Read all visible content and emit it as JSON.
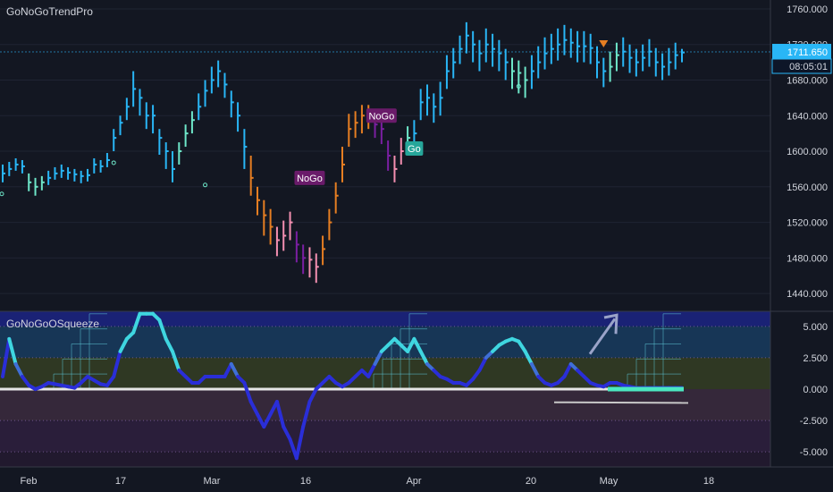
{
  "indicators": {
    "price_title": "GoNoGoTrendPro",
    "osc_title": "GoNoGoOSqueeze"
  },
  "colors": {
    "background": "#131722",
    "text": "#d1d4dc",
    "go_strong": "#29b6f6",
    "go_weak": "#6ee7c9",
    "nogo_strong": "#7b1fa2",
    "nogo_weak": "#f48fb1",
    "amber": "#e67e22",
    "price_tag": "#29b6f6"
  },
  "chart_data": [
    {
      "type": "bar",
      "title": "GoNoGoTrendPro",
      "ylim": [
        1420,
        1770
      ],
      "y_ticks": [
        1440,
        1480,
        1520,
        1560,
        1600,
        1640,
        1680,
        1720,
        1760
      ],
      "y_tick_labels": [
        "1440.000",
        "1480.000",
        "1520.000",
        "1560.000",
        "1600.000",
        "1640.000",
        "1680.000",
        "1720.000",
        "1760.000"
      ],
      "x_tick_labels": [
        "Feb",
        "17",
        "Mar",
        "16",
        "Apr",
        "20",
        "May",
        "18"
      ],
      "last_price": "1711.650",
      "countdown": "08:05:01",
      "annotations": [
        "NoGo",
        "NoGo",
        "Go"
      ],
      "bar_colors": [
        "go",
        "go",
        "go",
        "go",
        "go_weak",
        "go_weak",
        "go_weak",
        "go",
        "go",
        "go",
        "go",
        "go",
        "go",
        "go",
        "go",
        "go",
        "go",
        "go",
        "go",
        "go",
        "go",
        "go",
        "go",
        "go",
        "go",
        "go",
        "go",
        "go_weak",
        "go_weak",
        "go_weak",
        "go",
        "go",
        "go",
        "go",
        "go",
        "go",
        "go",
        "go",
        "amber",
        "amber",
        "amber",
        "amber",
        "nogo_weak",
        "nogo_weak",
        "nogo_weak",
        "nogo",
        "nogo",
        "nogo_weak",
        "nogo_weak",
        "amber",
        "amber",
        "amber",
        "amber",
        "amber",
        "amber",
        "amber",
        "amber",
        "nogo",
        "nogo",
        "nogo",
        "nogo_weak",
        "nogo_weak",
        "go_weak",
        "go",
        "go",
        "go",
        "go",
        "go",
        "go",
        "go",
        "go",
        "go",
        "go",
        "go",
        "go",
        "go",
        "go",
        "go",
        "go_weak",
        "go_weak",
        "go_weak",
        "go",
        "go",
        "go",
        "go",
        "go",
        "go",
        "go",
        "go",
        "go",
        "go",
        "go",
        "go",
        "go_weak",
        "go_weak",
        "go",
        "go",
        "go",
        "go",
        "go",
        "go",
        "go",
        "go",
        "go",
        "go",
        "go",
        "go",
        "go",
        "go"
      ],
      "close": [
        1575,
        1580,
        1585,
        1583,
        1565,
        1560,
        1565,
        1570,
        1575,
        1578,
        1576,
        1574,
        1572,
        1573,
        1585,
        1583,
        1590,
        1615,
        1632,
        1650,
        1670,
        1660,
        1640,
        1640,
        1615,
        1600,
        1580,
        1600,
        1620,
        1635,
        1650,
        1668,
        1680,
        1690,
        1675,
        1655,
        1640,
        1605,
        1570,
        1545,
        1528,
        1515,
        1500,
        1505,
        1520,
        1495,
        1480,
        1478,
        1470,
        1490,
        1520,
        1550,
        1585,
        1625,
        1632,
        1640,
        1640,
        1630,
        1625,
        1595,
        1580,
        1600,
        1615,
        1620,
        1655,
        1660,
        1650,
        1660,
        1690,
        1700,
        1715,
        1730,
        1720,
        1710,
        1720,
        1715,
        1710,
        1700,
        1690,
        1688,
        1680,
        1690,
        1700,
        1710,
        1715,
        1720,
        1725,
        1722,
        1718,
        1718,
        1716,
        1700,
        1690,
        1695,
        1708,
        1712,
        1705,
        1700,
        1705,
        1712,
        1700,
        1695,
        1700,
        1708,
        1711
      ],
      "hl": [
        [
          1565,
          1585
        ],
        [
          1572,
          1588
        ],
        [
          1578,
          1592
        ],
        [
          1575,
          1590
        ],
        [
          1555,
          1575
        ],
        [
          1550,
          1570
        ],
        [
          1556,
          1572
        ],
        [
          1562,
          1578
        ],
        [
          1568,
          1582
        ],
        [
          1570,
          1585
        ],
        [
          1568,
          1582
        ],
        [
          1566,
          1580
        ],
        [
          1564,
          1578
        ],
        [
          1566,
          1580
        ],
        [
          1575,
          1592
        ],
        [
          1576,
          1590
        ],
        [
          1582,
          1598
        ],
        [
          1600,
          1625
        ],
        [
          1618,
          1640
        ],
        [
          1635,
          1660
        ],
        [
          1650,
          1690
        ],
        [
          1640,
          1670
        ],
        [
          1625,
          1655
        ],
        [
          1620,
          1652
        ],
        [
          1596,
          1625
        ],
        [
          1580,
          1610
        ],
        [
          1565,
          1600
        ],
        [
          1585,
          1610
        ],
        [
          1605,
          1630
        ],
        [
          1620,
          1645
        ],
        [
          1635,
          1665
        ],
        [
          1650,
          1680
        ],
        [
          1665,
          1695
        ],
        [
          1672,
          1702
        ],
        [
          1660,
          1688
        ],
        [
          1638,
          1668
        ],
        [
          1622,
          1655
        ],
        [
          1580,
          1625
        ],
        [
          1550,
          1595
        ],
        [
          1528,
          1560
        ],
        [
          1505,
          1545
        ],
        [
          1495,
          1535
        ],
        [
          1482,
          1515
        ],
        [
          1488,
          1522
        ],
        [
          1500,
          1532
        ],
        [
          1475,
          1510
        ],
        [
          1462,
          1495
        ],
        [
          1458,
          1492
        ],
        [
          1452,
          1485
        ],
        [
          1472,
          1505
        ],
        [
          1500,
          1535
        ],
        [
          1530,
          1565
        ],
        [
          1565,
          1605
        ],
        [
          1605,
          1642
        ],
        [
          1615,
          1645
        ],
        [
          1620,
          1652
        ],
        [
          1625,
          1652
        ],
        [
          1615,
          1645
        ],
        [
          1608,
          1640
        ],
        [
          1578,
          1612
        ],
        [
          1565,
          1595
        ],
        [
          1585,
          1615
        ],
        [
          1598,
          1628
        ],
        [
          1605,
          1635
        ],
        [
          1635,
          1670
        ],
        [
          1640,
          1675
        ],
        [
          1632,
          1665
        ],
        [
          1640,
          1678
        ],
        [
          1670,
          1708
        ],
        [
          1682,
          1716
        ],
        [
          1698,
          1730
        ],
        [
          1710,
          1745
        ],
        [
          1700,
          1735
        ],
        [
          1690,
          1725
        ],
        [
          1700,
          1738
        ],
        [
          1695,
          1732
        ],
        [
          1690,
          1725
        ],
        [
          1680,
          1715
        ],
        [
          1670,
          1705
        ],
        [
          1665,
          1702
        ],
        [
          1660,
          1695
        ],
        [
          1670,
          1708
        ],
        [
          1682,
          1718
        ],
        [
          1692,
          1728
        ],
        [
          1698,
          1732
        ],
        [
          1702,
          1738
        ],
        [
          1708,
          1742
        ],
        [
          1705,
          1738
        ],
        [
          1700,
          1735
        ],
        [
          1700,
          1735
        ],
        [
          1698,
          1732
        ],
        [
          1682,
          1718
        ],
        [
          1672,
          1705
        ],
        [
          1678,
          1712
        ],
        [
          1690,
          1722
        ],
        [
          1695,
          1728
        ],
        [
          1688,
          1720
        ],
        [
          1684,
          1715
        ],
        [
          1690,
          1720
        ],
        [
          1695,
          1726
        ],
        [
          1684,
          1716
        ],
        [
          1680,
          1710
        ],
        [
          1685,
          1716
        ],
        [
          1692,
          1722
        ],
        [
          1700,
          1715
        ]
      ]
    },
    {
      "type": "line",
      "title": "GoNoGoOSqueeze",
      "ylim": [
        -6.2,
        6.2
      ],
      "y_ticks": [
        -5,
        -2.5,
        0,
        2.5,
        5
      ],
      "y_tick_labels": [
        "-5.000",
        "-2.500",
        "0.000",
        "2.500",
        "5.000"
      ],
      "values": [
        1,
        4,
        2,
        1,
        0.3,
        0,
        0.2,
        0.5,
        0.4,
        0.3,
        0.2,
        0.1,
        0.5,
        1,
        0.7,
        0.4,
        0.3,
        1,
        3,
        4,
        4.5,
        6,
        6,
        6,
        5.5,
        4,
        3,
        1.5,
        1,
        0.5,
        0.5,
        1,
        1,
        1,
        1,
        2,
        1,
        0.5,
        -1,
        -2,
        -3,
        -2,
        -1,
        -3,
        -4,
        -5.5,
        -3,
        -1,
        0,
        0.5,
        1,
        0.5,
        0.2,
        0.5,
        1,
        1.5,
        1,
        2,
        3,
        3.5,
        4,
        3.5,
        3,
        4,
        3,
        2,
        1.5,
        1,
        0.8,
        0.5,
        0.5,
        0.3,
        0.8,
        1.5,
        2.5,
        3,
        3.5,
        3.8,
        4,
        3.8,
        3,
        2,
        1,
        0.5,
        0.3,
        0.5,
        1,
        2,
        1.5,
        1,
        0.5,
        0.3,
        0.2,
        0.5,
        0.5,
        0.3,
        0.2,
        0.1,
        0.1,
        0.1,
        0.1,
        0.1,
        0.1,
        0.1,
        0.1
      ]
    }
  ]
}
